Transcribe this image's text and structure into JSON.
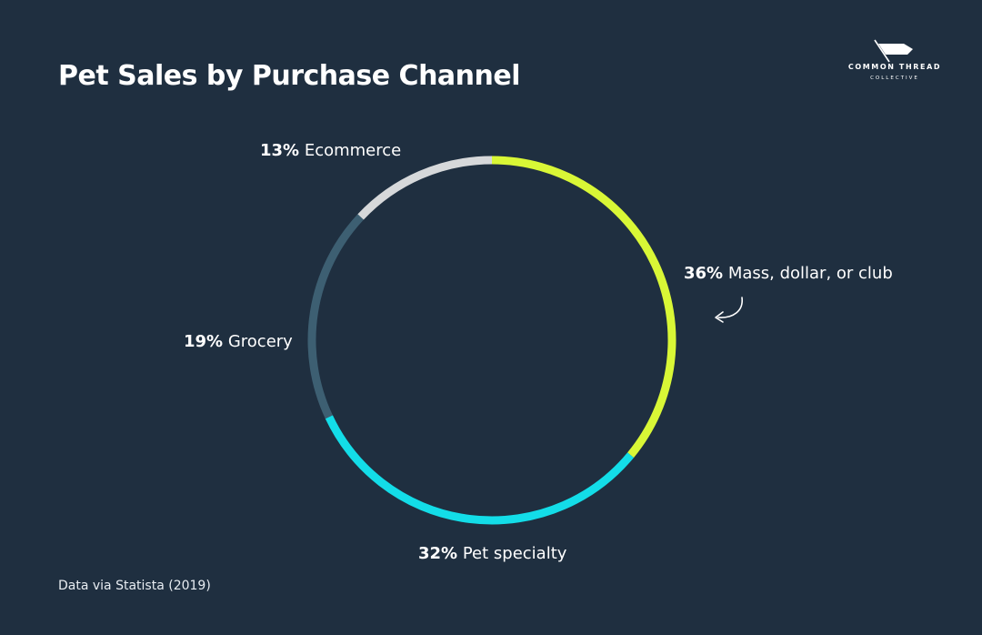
{
  "title": "Pet Sales by Purchase Channel",
  "logo": {
    "line1": "COMMON THREAD",
    "line2": "COLLECTIVE",
    "icon": "flag-icon"
  },
  "source": "Data via Statista (2019)",
  "colors": {
    "background": "#1f2f40",
    "mass": "#d9f736",
    "pet_specialty": "#13dde8",
    "grocery": "#3d5f72",
    "ecommerce": "#d6d8da"
  },
  "chart_data": {
    "type": "pie",
    "style": "donut-ring",
    "title": "Pet Sales by Purchase Channel",
    "slices": [
      {
        "label": "Mass, dollar, or club",
        "value": 36,
        "pct_label": "36%",
        "color": "#d9f736"
      },
      {
        "label": "Pet specialty",
        "value": 32,
        "pct_label": "32%",
        "color": "#13dde8"
      },
      {
        "label": "Grocery",
        "value": 19,
        "pct_label": "19%",
        "color": "#3d5f72"
      },
      {
        "label": "Ecommerce",
        "value": 13,
        "pct_label": "13%",
        "color": "#d6d8da"
      }
    ],
    "start_angle": "top",
    "direction": "clockwise"
  }
}
